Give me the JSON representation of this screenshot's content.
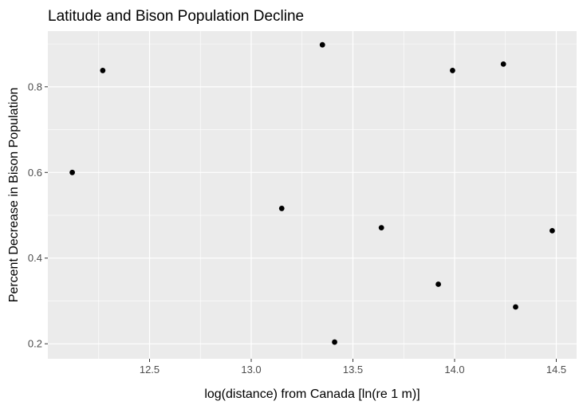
{
  "chart_data": {
    "type": "scatter",
    "title": "Latitude and Bison Population Decline",
    "xlabel": "log(distance) from Canada [ln(re 1 m)]",
    "ylabel": "Percent Decrease in Bison Population",
    "xlim": [
      12.0,
      14.6
    ],
    "ylim": [
      0.165,
      0.93
    ],
    "x_ticks": [
      12.5,
      13.0,
      13.5,
      14.0,
      14.5
    ],
    "x_tick_labels": [
      "12.5",
      "13.0",
      "13.5",
      "14.0",
      "14.5"
    ],
    "y_ticks": [
      0.2,
      0.4,
      0.6,
      0.8
    ],
    "y_tick_labels": [
      "0.2",
      "0.4",
      "0.6",
      "0.8"
    ],
    "grid": true,
    "colors": {
      "panel_background": "#ebebeb",
      "grid_major": "#ffffff",
      "point": "#000000",
      "tick_text": "#4d4d4d",
      "tick_mark": "#333333"
    },
    "points": [
      {
        "x": 12.12,
        "y": 0.6
      },
      {
        "x": 12.27,
        "y": 0.838
      },
      {
        "x": 13.15,
        "y": 0.516
      },
      {
        "x": 13.35,
        "y": 0.898
      },
      {
        "x": 13.41,
        "y": 0.204
      },
      {
        "x": 13.64,
        "y": 0.471
      },
      {
        "x": 13.92,
        "y": 0.339
      },
      {
        "x": 13.99,
        "y": 0.838
      },
      {
        "x": 14.24,
        "y": 0.853
      },
      {
        "x": 14.3,
        "y": 0.286
      },
      {
        "x": 14.48,
        "y": 0.464
      }
    ]
  }
}
